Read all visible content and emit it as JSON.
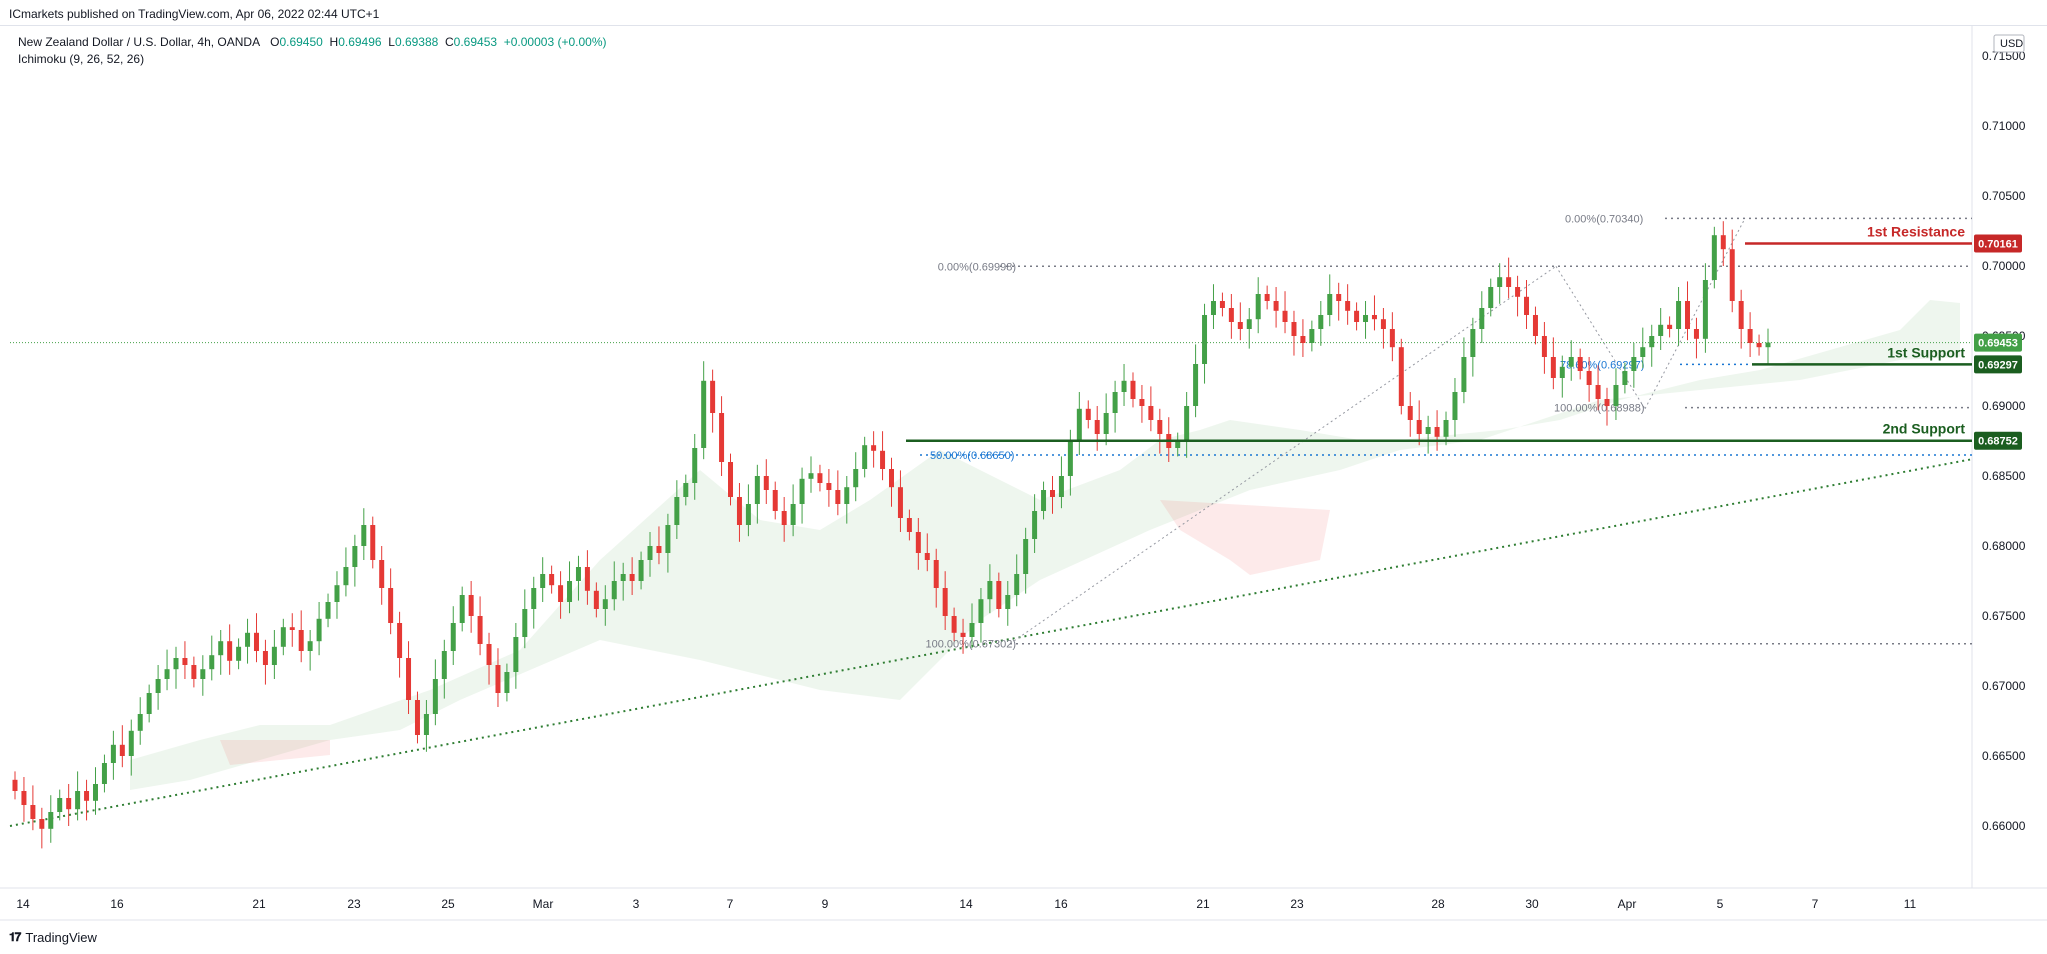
{
  "publisher": "ICmarkets published on TradingView.com, Apr 06, 2022 02:44 UTC+1",
  "legend": {
    "symbol": "New Zealand Dollar / U.S. Dollar, 4h, OANDA",
    "o_label": "O",
    "o": "0.69450",
    "h_label": "H",
    "h": "0.69496",
    "l_label": "L",
    "l": "0.69388",
    "c_label": "C",
    "c": "0.69453",
    "change": "+0.00003 (+0.00%)",
    "indicator": "Ichimoku (9, 26, 52, 26)"
  },
  "brand": "TradingView",
  "chart_data": {
    "type": "candlestick",
    "currency": "USD",
    "ylim": [
      0.656,
      0.717
    ],
    "y_ticks": [
      0.66,
      0.665,
      0.67,
      0.675,
      0.68,
      0.685,
      0.69,
      0.695,
      0.7,
      0.705,
      0.71,
      0.715
    ],
    "x_ticks": [
      "14",
      "16",
      "21",
      "23",
      "25",
      "Mar",
      "3",
      "7",
      "9",
      "14",
      "16",
      "21",
      "23",
      "28",
      "30",
      "Apr",
      "5",
      "7",
      "11"
    ],
    "key_levels": [
      {
        "label": "1st Resistance",
        "price": "0.70161",
        "value": 0.70161,
        "color": "#c62828"
      },
      {
        "label": "1st Support",
        "price": "0.69297",
        "value": 0.69297,
        "color": "#1b5e20"
      },
      {
        "label": "2nd Support",
        "price": "0.68752",
        "value": 0.68752,
        "color": "#1b5e20"
      }
    ],
    "current_price": {
      "price": "0.69453",
      "value": 0.69453,
      "color": "#43a047"
    },
    "fib_labels": [
      {
        "text": "0.00%(0.69998)",
        "value": 0.69998
      },
      {
        "text": "50.00%(0.68650)",
        "value": 0.6865
      },
      {
        "text": "100.00%(0.67302)",
        "value": 0.67302
      },
      {
        "text": "0.00%(0.70340)",
        "value": 0.7034
      },
      {
        "text": "78.60%(0.69297)",
        "value": 0.69297
      },
      {
        "text": "100.00%(0.68988)",
        "value": 0.68988
      }
    ],
    "trendline": {
      "from": 0.66,
      "to": 0.6862
    },
    "closes": [
      0.6625,
      0.6615,
      0.6605,
      0.6598,
      0.661,
      0.662,
      0.6612,
      0.6625,
      0.6618,
      0.663,
      0.6645,
      0.6658,
      0.665,
      0.6668,
      0.668,
      0.6695,
      0.6705,
      0.6712,
      0.672,
      0.6715,
      0.6705,
      0.6712,
      0.6722,
      0.6732,
      0.6718,
      0.6728,
      0.6738,
      0.6725,
      0.6715,
      0.6728,
      0.6742,
      0.674,
      0.6725,
      0.6732,
      0.6748,
      0.676,
      0.6772,
      0.6785,
      0.68,
      0.6815,
      0.679,
      0.677,
      0.6745,
      0.672,
      0.669,
      0.6665,
      0.668,
      0.6705,
      0.6725,
      0.6745,
      0.6765,
      0.675,
      0.673,
      0.6715,
      0.6695,
      0.671,
      0.6735,
      0.6755,
      0.677,
      0.678,
      0.6772,
      0.676,
      0.6775,
      0.6785,
      0.6768,
      0.6755,
      0.6762,
      0.6775,
      0.678,
      0.6775,
      0.679,
      0.68,
      0.6795,
      0.6815,
      0.6835,
      0.6845,
      0.687,
      0.6918,
      0.6895,
      0.686,
      0.6835,
      0.6815,
      0.683,
      0.685,
      0.684,
      0.6825,
      0.6815,
      0.683,
      0.6848,
      0.6852,
      0.6845,
      0.684,
      0.683,
      0.6842,
      0.6855,
      0.6872,
      0.6868,
      0.6855,
      0.6842,
      0.682,
      0.681,
      0.6795,
      0.679,
      0.677,
      0.675,
      0.6738,
      0.6735,
      0.6745,
      0.6762,
      0.6775,
      0.6755,
      0.6765,
      0.678,
      0.6805,
      0.6825,
      0.684,
      0.6835,
      0.685,
      0.6875,
      0.6898,
      0.689,
      0.688,
      0.6895,
      0.691,
      0.6918,
      0.6905,
      0.69,
      0.689,
      0.688,
      0.687,
      0.6875,
      0.69,
      0.693,
      0.6965,
      0.6975,
      0.697,
      0.696,
      0.6955,
      0.6962,
      0.698,
      0.6975,
      0.6968,
      0.696,
      0.695,
      0.6945,
      0.6955,
      0.6965,
      0.698,
      0.6975,
      0.6968,
      0.696,
      0.6965,
      0.6962,
      0.6955,
      0.6942,
      0.69,
      0.689,
      0.688,
      0.6885,
      0.6878,
      0.689,
      0.691,
      0.6935,
      0.6955,
      0.697,
      0.6985,
      0.6992,
      0.6985,
      0.6978,
      0.6965,
      0.695,
      0.6935,
      0.692,
      0.6928,
      0.6935,
      0.6925,
      0.6915,
      0.6905,
      0.69,
      0.6915,
      0.6925,
      0.6935,
      0.6942,
      0.695,
      0.6958,
      0.6955,
      0.6975,
      0.6955,
      0.6948,
      0.699,
      0.7022,
      0.7012,
      0.6975,
      0.6955,
      0.6945,
      0.6942,
      0.69453
    ]
  }
}
